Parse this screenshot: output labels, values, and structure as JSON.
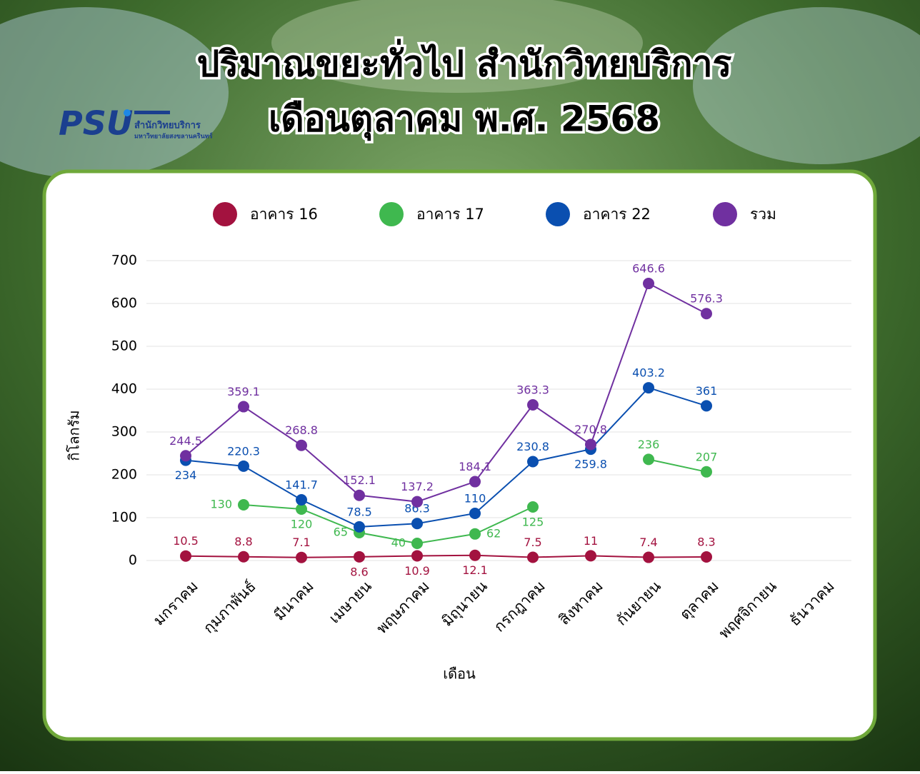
{
  "header": {
    "title_line1": "ปริมาณขยะทั่วไป สำนักวิทยบริการ",
    "title_line2": "เดือนตุลาคม พ.ศ. 2568",
    "logo": {
      "mark": "PSU",
      "name": "สำนักวิทยบริการ",
      "university": "มหาวิทยาลัยสงขลานครินทร์"
    }
  },
  "chart_data": {
    "type": "line",
    "x_label": "เดือน",
    "y_label": "กิโลกรัม",
    "categories": [
      "มกราคม",
      "กุมภาพันธ์",
      "มีนาคม",
      "เมษายน",
      "พฤษภาคม",
      "มิถุนายน",
      "กรกฎาคม",
      "สิงหาคม",
      "กันยายน",
      "ตุลาคม",
      "พฤศจิกายน",
      "ธันวาคม"
    ],
    "series": [
      {
        "name": "อาคาร 16",
        "color": "#a3123f",
        "values": [
          10.5,
          8.8,
          7.1,
          8.6,
          10.9,
          12.1,
          7.5,
          11,
          7.4,
          8.3,
          null,
          null
        ]
      },
      {
        "name": "อาคาร 17",
        "color": "#3fb84f",
        "values": [
          null,
          130,
          120,
          65,
          40,
          62,
          125,
          null,
          236,
          207,
          null,
          null
        ]
      },
      {
        "name": "อาคาร 22",
        "color": "#0a4fb0",
        "values": [
          234,
          220.3,
          141.7,
          78.5,
          86.3,
          110,
          230.8,
          259.8,
          403.2,
          361,
          null,
          null
        ]
      },
      {
        "name": "รวม",
        "color": "#7030a0",
        "values": [
          244.5,
          359.1,
          268.8,
          152.1,
          137.2,
          184.1,
          363.3,
          270.8,
          646.6,
          576.3,
          null,
          null
        ]
      }
    ],
    "ylim": [
      0,
      700
    ],
    "yticks": [
      0,
      100,
      200,
      300,
      400,
      500,
      600,
      700
    ],
    "grid": true,
    "legend": "top"
  }
}
